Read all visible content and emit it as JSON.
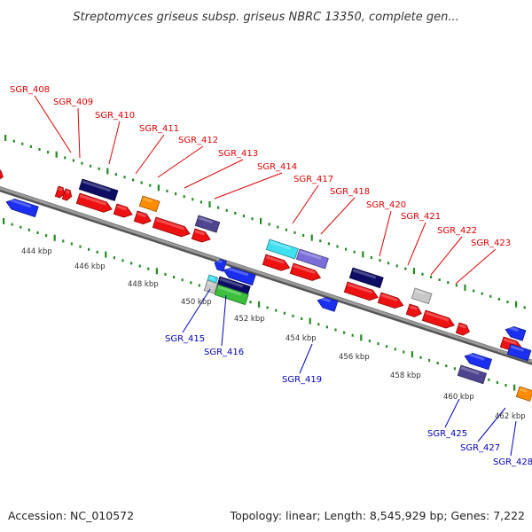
{
  "title": "Streptomyces griseus subsp. griseus NBRC 13350, complete gen...",
  "footer": {
    "accession": "Accession: NC_010572",
    "topology": "Topology: linear; Length: 8,545,929 bp; Genes: 7,222"
  },
  "colors": {
    "label_top": "#dd0000",
    "label_bottom": "#0000bb",
    "backbone": "#888888",
    "tick": "#228b22",
    "red": "#ee1111",
    "blue": "#1a2ff0",
    "navy": "#0d0d66",
    "orange": "#ff8c00",
    "cyan": "#3ee0f0",
    "lavender": "#7a6ed8",
    "purple": "#4e4490",
    "gray": "#c8c8c8",
    "green": "#3cc03c"
  },
  "scale_labels": [
    "444 kbp",
    "446 kbp",
    "448 kbp",
    "450 kbp",
    "452 kbp",
    "454 kbp",
    "456 kbp",
    "458 kbp",
    "460 kbp",
    "462 kbp"
  ],
  "top_labels": [
    "SGR_408",
    "SGR_409",
    "SGR_410",
    "SGR_411",
    "SGR_412",
    "SGR_413",
    "SGR_414",
    "SGR_417",
    "SGR_418",
    "SGR_420",
    "SGR_421",
    "SGR_422",
    "SGR_423"
  ],
  "bottom_labels": [
    "SGR_415",
    "SGR_416",
    "SGR_419",
    "SGR_425",
    "SGR_427",
    "SGR_428"
  ]
}
